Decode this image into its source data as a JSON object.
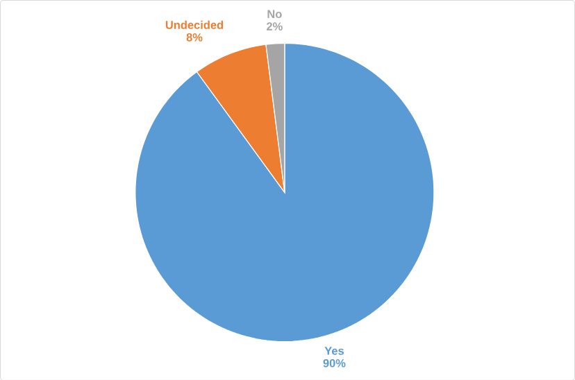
{
  "chart_data": {
    "type": "pie",
    "categories": [
      "Yes",
      "Undecided",
      "No"
    ],
    "values": [
      90,
      8,
      2
    ],
    "colors": [
      "#5b9bd5",
      "#ed7d31",
      "#a5a5a5"
    ],
    "value_labels": [
      "90%",
      "8%",
      "2%"
    ]
  }
}
